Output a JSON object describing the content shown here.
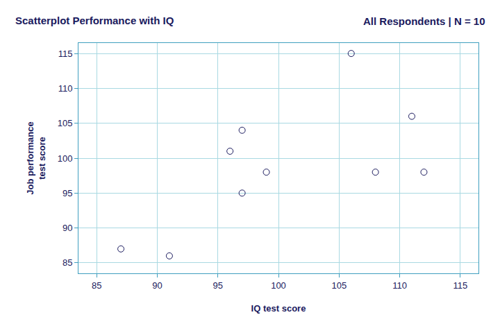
{
  "chart_data": {
    "type": "scatter",
    "title": "Scatterplot Performance with IQ",
    "subtitle": "All Respondents | N = 10",
    "x_label": "IQ test score",
    "y_label": "Job performance\ntest score",
    "x": [
      87,
      91,
      96,
      97,
      97,
      99,
      106,
      108,
      111,
      112
    ],
    "values": [
      87,
      86,
      101,
      104,
      95,
      98,
      115,
      98,
      106,
      98
    ],
    "color": "#1a1a5e",
    "marker": "circle-open",
    "grid": true,
    "xlim": [
      83.5,
      116.5
    ],
    "xticks": [
      85,
      90,
      95,
      100,
      105,
      110,
      115
    ],
    "ylim": [
      83.5,
      116.5
    ],
    "yticks": [
      85,
      90,
      95,
      100,
      105,
      110,
      115
    ]
  }
}
